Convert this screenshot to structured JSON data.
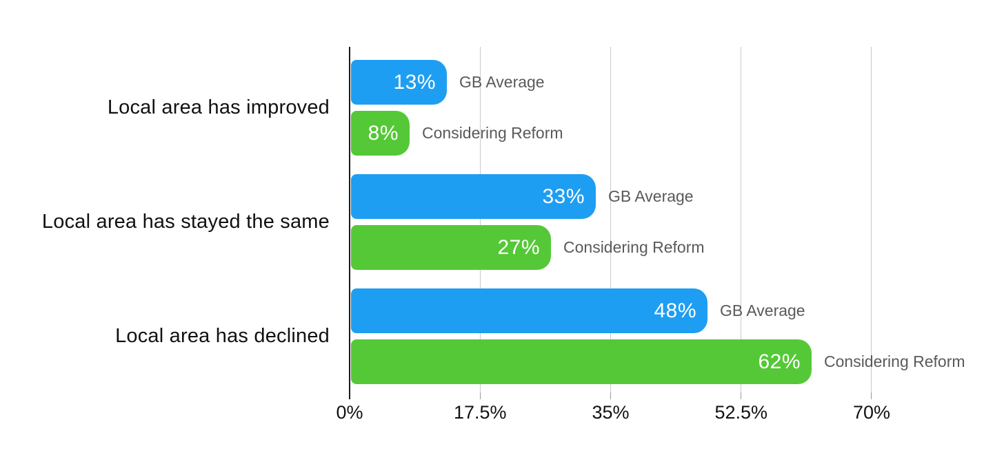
{
  "page": {
    "background": "#ffffff"
  },
  "colors": {
    "gb_average": "#1E9EF2",
    "considering_reform": "#55C837",
    "bar_value_text": "#ffffff",
    "series_label_text": "#595959",
    "category_text": "#111111",
    "tick_text": "#111111",
    "axis_line": "#1a1a1a",
    "gridline": "#c9c9c9",
    "tick_mark": "#999999"
  },
  "chart_data": {
    "type": "bar",
    "orientation": "horizontal",
    "categories": [
      "Local area has improved",
      "Local area has stayed the same",
      "Local area has declined"
    ],
    "series": [
      {
        "name": "GB Average",
        "color_key": "gb_average",
        "values": [
          13,
          33,
          48
        ],
        "labels": [
          "13%",
          "33%",
          "48%"
        ]
      },
      {
        "name": "Considering Reform",
        "color_key": "considering_reform",
        "values": [
          8,
          27,
          62
        ],
        "labels": [
          "8%",
          "27%",
          "62%"
        ]
      }
    ],
    "xlabel": "",
    "ylabel": "",
    "xlim": [
      0,
      70
    ],
    "xticks": [
      {
        "value": 0,
        "label": "0%"
      },
      {
        "value": 17.5,
        "label": "17.5%"
      },
      {
        "value": 35,
        "label": "35%"
      },
      {
        "value": 52.5,
        "label": "52.5%"
      },
      {
        "value": 70,
        "label": "70%"
      }
    ],
    "grid": "vertical-gridlines-on",
    "legend": "inline-labels-right-of-bars"
  }
}
